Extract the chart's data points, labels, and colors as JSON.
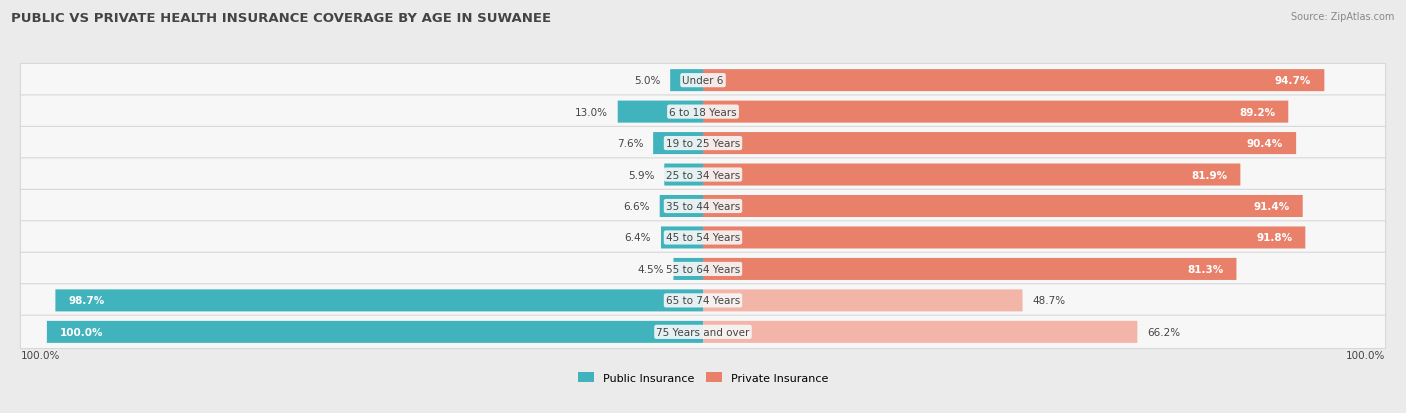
{
  "title": "PUBLIC VS PRIVATE HEALTH INSURANCE COVERAGE BY AGE IN SUWANEE",
  "source": "Source: ZipAtlas.com",
  "categories": [
    "Under 6",
    "6 to 18 Years",
    "19 to 25 Years",
    "25 to 34 Years",
    "35 to 44 Years",
    "45 to 54 Years",
    "55 to 64 Years",
    "65 to 74 Years",
    "75 Years and over"
  ],
  "public_values": [
    5.0,
    13.0,
    7.6,
    5.9,
    6.6,
    6.4,
    4.5,
    98.7,
    100.0
  ],
  "private_values": [
    94.7,
    89.2,
    90.4,
    81.9,
    91.4,
    91.8,
    81.3,
    48.7,
    66.2
  ],
  "public_color": "#40b3bc",
  "private_color_dark": "#e8806a",
  "private_color_light": "#f2b5a8",
  "background_color": "#ebebeb",
  "bar_bg_color": "#f7f7f7",
  "bar_border_color": "#d8d8d8",
  "title_color": "#444444",
  "source_color": "#888888",
  "label_dark": "#444444",
  "label_white": "#ffffff",
  "axis_label": "100.0%",
  "legend_public": "Public Insurance",
  "legend_private": "Private Insurance"
}
